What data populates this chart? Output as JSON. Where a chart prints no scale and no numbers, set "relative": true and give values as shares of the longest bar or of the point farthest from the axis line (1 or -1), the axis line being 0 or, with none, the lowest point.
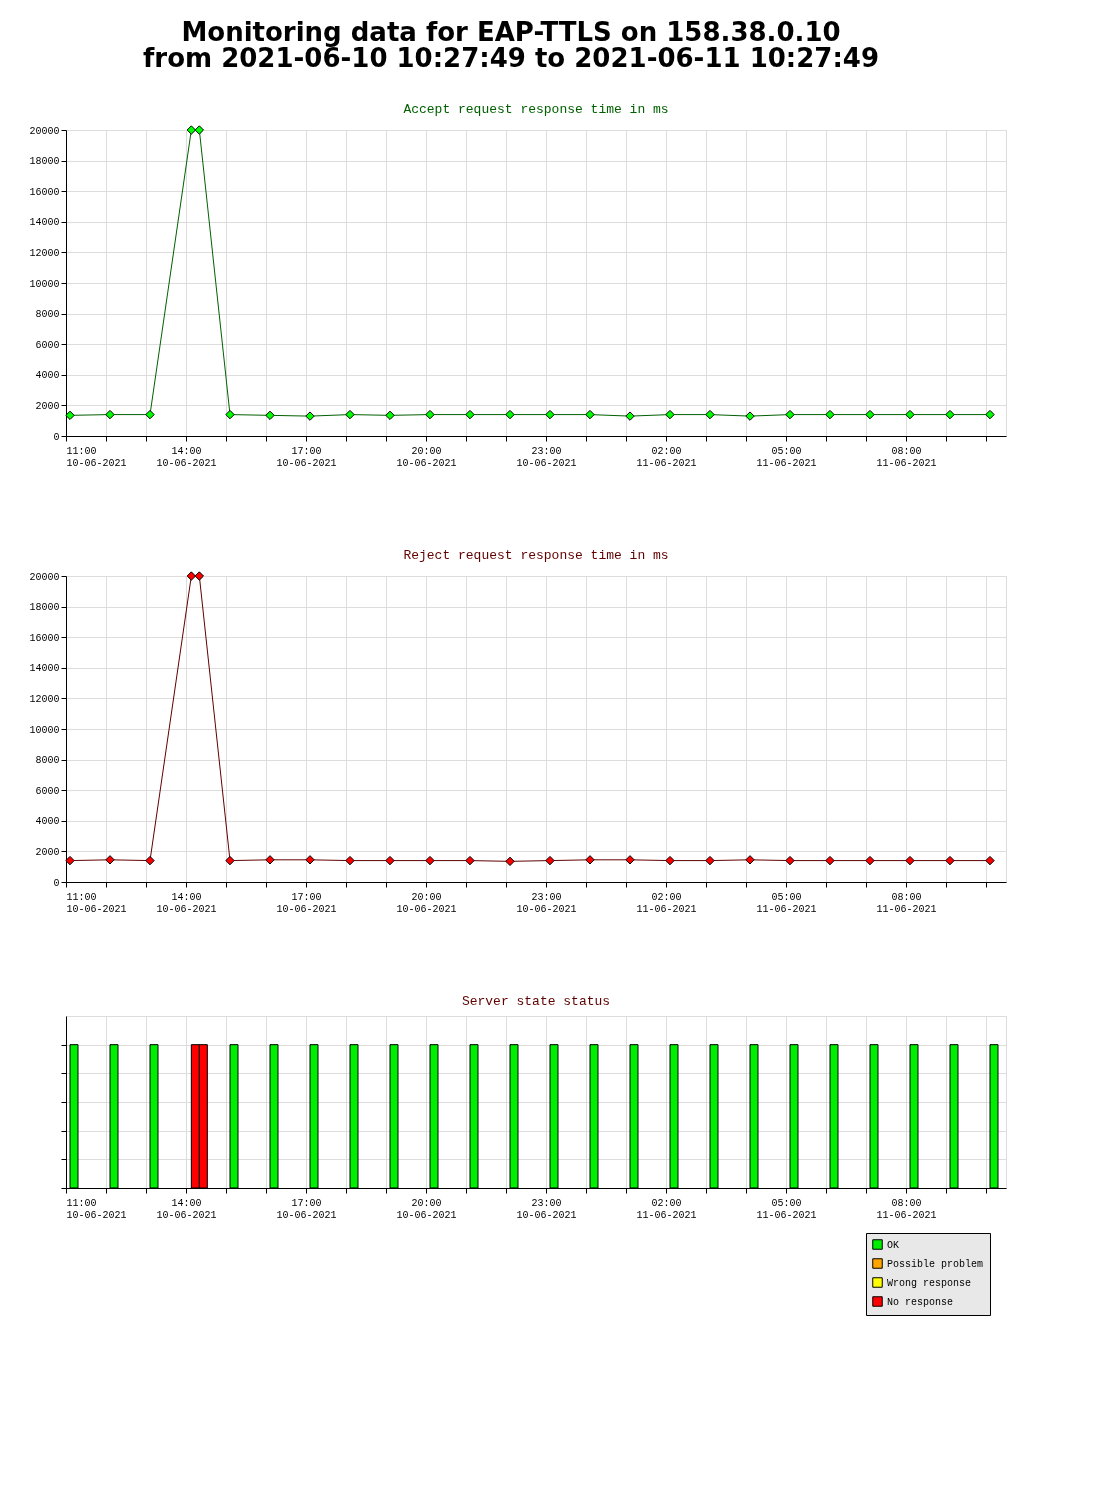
{
  "chart_data": [
    {
      "type": "line",
      "title": "Monitoring data for EAP-TTLS on 158.38.0.10\nfrom 2021-06-10 10:27:49 to 2021-06-11 10:27:49",
      "subtitle": "Accept request response time in ms",
      "x": [
        "2021-06-10T11:06",
        "2021-06-10T12:06",
        "2021-06-10T13:06",
        "2021-06-10T14:08",
        "2021-06-10T14:20",
        "2021-06-10T15:06",
        "2021-06-10T16:06",
        "2021-06-10T17:06",
        "2021-06-10T18:06",
        "2021-06-10T19:06",
        "2021-06-10T20:06",
        "2021-06-10T21:06",
        "2021-06-10T22:06",
        "2021-06-10T23:06",
        "2021-06-11T00:06",
        "2021-06-11T01:06",
        "2021-06-11T02:06",
        "2021-06-11T03:06",
        "2021-06-11T04:06",
        "2021-06-11T05:06",
        "2021-06-11T06:06",
        "2021-06-11T07:06",
        "2021-06-11T08:06",
        "2021-06-11T09:06",
        "2021-06-11T10:06"
      ],
      "series": [
        {
          "color": "#00ff00",
          "values": [
            1350,
            1400,
            1400,
            20000,
            20000,
            1400,
            1350,
            1300,
            1400,
            1350,
            1400,
            1400,
            1400,
            1400,
            1400,
            1300,
            1400,
            1400,
            1300,
            1400,
            1400,
            1400,
            1400,
            1400,
            1400
          ]
        }
      ],
      "xlim": [
        "2021-06-10T11:00",
        "2021-06-11T10:30"
      ],
      "xticks": [
        {
          "value": "2021-06-10T11:00",
          "label": "11:00\n10-06-2021"
        },
        {
          "value": "2021-06-10T12:00",
          "label": null
        },
        {
          "value": "2021-06-10T13:00",
          "label": null
        },
        {
          "value": "2021-06-10T14:00",
          "label": "14:00\n10-06-2021"
        },
        {
          "value": "2021-06-10T15:00",
          "label": null
        },
        {
          "value": "2021-06-10T16:00",
          "label": null
        },
        {
          "value": "2021-06-10T17:00",
          "label": "17:00\n10-06-2021"
        },
        {
          "value": "2021-06-10T18:00",
          "label": null
        },
        {
          "value": "2021-06-10T19:00",
          "label": null
        },
        {
          "value": "2021-06-10T20:00",
          "label": "20:00\n10-06-2021"
        },
        {
          "value": "2021-06-10T21:00",
          "label": null
        },
        {
          "value": "2021-06-10T22:00",
          "label": null
        },
        {
          "value": "2021-06-10T23:00",
          "label": "23:00\n10-06-2021"
        },
        {
          "value": "2021-06-11T00:00",
          "label": null
        },
        {
          "value": "2021-06-11T01:00",
          "label": null
        },
        {
          "value": "2021-06-11T02:00",
          "label": "02:00\n11-06-2021"
        },
        {
          "value": "2021-06-11T03:00",
          "label": null
        },
        {
          "value": "2021-06-11T04:00",
          "label": null
        },
        {
          "value": "2021-06-11T05:00",
          "label": "05:00\n11-06-2021"
        },
        {
          "value": "2021-06-11T06:00",
          "label": null
        },
        {
          "value": "2021-06-11T07:00",
          "label": null
        },
        {
          "value": "2021-06-11T08:00",
          "label": "08:00\n11-06-2021"
        },
        {
          "value": "2021-06-11T09:00",
          "label": null
        },
        {
          "value": "2021-06-11T10:00",
          "label": null
        }
      ],
      "ylim": [
        0,
        20000
      ],
      "yticks": [
        0,
        2000,
        4000,
        6000,
        8000,
        10000,
        12000,
        14000,
        16000,
        18000,
        20000
      ],
      "grid": true,
      "marker": "diamond",
      "line_style": "solid"
    },
    {
      "type": "line",
      "title": "Reject request response time in ms",
      "x": [
        "2021-06-10T11:06",
        "2021-06-10T12:06",
        "2021-06-10T13:06",
        "2021-06-10T14:08",
        "2021-06-10T14:20",
        "2021-06-10T15:06",
        "2021-06-10T16:06",
        "2021-06-10T17:06",
        "2021-06-10T18:06",
        "2021-06-10T19:06",
        "2021-06-10T20:06",
        "2021-06-10T21:06",
        "2021-06-10T22:06",
        "2021-06-10T23:06",
        "2021-06-11T00:06",
        "2021-06-11T01:06",
        "2021-06-11T02:06",
        "2021-06-11T03:06",
        "2021-06-11T04:06",
        "2021-06-11T05:06",
        "2021-06-11T06:06",
        "2021-06-11T07:06",
        "2021-06-11T08:06",
        "2021-06-11T09:06",
        "2021-06-11T10:06"
      ],
      "series": [
        {
          "color": "#ff0000",
          "values": [
            1400,
            1450,
            1400,
            20000,
            20000,
            1400,
            1450,
            1450,
            1400,
            1400,
            1400,
            1400,
            1350,
            1400,
            1450,
            1450,
            1400,
            1400,
            1450,
            1400,
            1400,
            1400,
            1400,
            1400,
            1400
          ]
        }
      ],
      "xlim": [
        "2021-06-10T11:00",
        "2021-06-11T10:30"
      ],
      "xticks": [
        {
          "value": "2021-06-10T11:00",
          "label": "11:00\n10-06-2021"
        },
        {
          "value": "2021-06-10T12:00",
          "label": null
        },
        {
          "value": "2021-06-10T13:00",
          "label": null
        },
        {
          "value": "2021-06-10T14:00",
          "label": "14:00\n10-06-2021"
        },
        {
          "value": "2021-06-10T15:00",
          "label": null
        },
        {
          "value": "2021-06-10T16:00",
          "label": null
        },
        {
          "value": "2021-06-10T17:00",
          "label": "17:00\n10-06-2021"
        },
        {
          "value": "2021-06-10T18:00",
          "label": null
        },
        {
          "value": "2021-06-10T19:00",
          "label": null
        },
        {
          "value": "2021-06-10T20:00",
          "label": "20:00\n10-06-2021"
        },
        {
          "value": "2021-06-10T21:00",
          "label": null
        },
        {
          "value": "2021-06-10T22:00",
          "label": null
        },
        {
          "value": "2021-06-10T23:00",
          "label": "23:00\n10-06-2021"
        },
        {
          "value": "2021-06-11T00:00",
          "label": null
        },
        {
          "value": "2021-06-11T01:00",
          "label": null
        },
        {
          "value": "2021-06-11T02:00",
          "label": "02:00\n11-06-2021"
        },
        {
          "value": "2021-06-11T03:00",
          "label": null
        },
        {
          "value": "2021-06-11T04:00",
          "label": null
        },
        {
          "value": "2021-06-11T05:00",
          "label": "05:00\n11-06-2021"
        },
        {
          "value": "2021-06-11T06:00",
          "label": null
        },
        {
          "value": "2021-06-11T07:00",
          "label": null
        },
        {
          "value": "2021-06-11T08:00",
          "label": "08:00\n11-06-2021"
        },
        {
          "value": "2021-06-11T09:00",
          "label": null
        },
        {
          "value": "2021-06-11T10:00",
          "label": null
        }
      ],
      "ylim": [
        0,
        20000
      ],
      "yticks": [
        0,
        2000,
        4000,
        6000,
        8000,
        10000,
        12000,
        14000,
        16000,
        18000,
        20000
      ],
      "grid": true,
      "marker": "diamond",
      "line_style": "solid"
    },
    {
      "type": "bar",
      "title": "Server state status",
      "relative": true,
      "x": [
        "2021-06-10T11:06",
        "2021-06-10T12:06",
        "2021-06-10T13:06",
        "2021-06-10T14:08",
        "2021-06-10T14:20",
        "2021-06-10T15:06",
        "2021-06-10T16:06",
        "2021-06-10T17:06",
        "2021-06-10T18:06",
        "2021-06-10T19:06",
        "2021-06-10T20:06",
        "2021-06-10T21:06",
        "2021-06-10T22:06",
        "2021-06-10T23:06",
        "2021-06-11T00:06",
        "2021-06-11T01:06",
        "2021-06-11T02:06",
        "2021-06-11T03:06",
        "2021-06-11T04:06",
        "2021-06-11T05:06",
        "2021-06-11T06:06",
        "2021-06-11T07:06",
        "2021-06-11T08:06",
        "2021-06-11T09:06",
        "2021-06-11T10:06"
      ],
      "series": [
        {
          "name": "OK",
          "color": "#00ee00",
          "values": [
            1,
            1,
            1,
            null,
            null,
            1,
            1,
            1,
            1,
            1,
            1,
            1,
            1,
            1,
            1,
            1,
            1,
            1,
            1,
            1,
            1,
            1,
            1,
            1,
            1
          ]
        },
        {
          "name": "Possible problem",
          "color": "#ffa500",
          "values": [
            null,
            null,
            null,
            null,
            null,
            null,
            null,
            null,
            null,
            null,
            null,
            null,
            null,
            null,
            null,
            null,
            null,
            null,
            null,
            null,
            null,
            null,
            null,
            null,
            null
          ]
        },
        {
          "name": "Wrong response",
          "color": "#ffff00",
          "values": [
            null,
            null,
            null,
            null,
            null,
            null,
            null,
            null,
            null,
            null,
            null,
            null,
            null,
            null,
            null,
            null,
            null,
            null,
            null,
            null,
            null,
            null,
            null,
            null,
            null
          ]
        },
        {
          "name": "No response",
          "color": "#ff0000",
          "values": [
            null,
            null,
            null,
            1,
            1,
            null,
            null,
            null,
            null,
            null,
            null,
            null,
            null,
            null,
            null,
            null,
            null,
            null,
            null,
            null,
            null,
            null,
            null,
            null,
            null
          ]
        }
      ],
      "xlim": [
        "2021-06-10T11:00",
        "2021-06-11T10:30"
      ],
      "xticks": [
        {
          "value": "2021-06-10T11:00",
          "label": "11:00\n10-06-2021"
        },
        {
          "value": "2021-06-10T12:00",
          "label": null
        },
        {
          "value": "2021-06-10T13:00",
          "label": null
        },
        {
          "value": "2021-06-10T14:00",
          "label": "14:00\n10-06-2021"
        },
        {
          "value": "2021-06-10T15:00",
          "label": null
        },
        {
          "value": "2021-06-10T16:00",
          "label": null
        },
        {
          "value": "2021-06-10T17:00",
          "label": "17:00\n10-06-2021"
        },
        {
          "value": "2021-06-10T18:00",
          "label": null
        },
        {
          "value": "2021-06-10T19:00",
          "label": null
        },
        {
          "value": "2021-06-10T20:00",
          "label": "20:00\n10-06-2021"
        },
        {
          "value": "2021-06-10T21:00",
          "label": null
        },
        {
          "value": "2021-06-10T22:00",
          "label": null
        },
        {
          "value": "2021-06-10T23:00",
          "label": "23:00\n10-06-2021"
        },
        {
          "value": "2021-06-11T00:00",
          "label": null
        },
        {
          "value": "2021-06-11T01:00",
          "label": null
        },
        {
          "value": "2021-06-11T02:00",
          "label": "02:00\n11-06-2021"
        },
        {
          "value": "2021-06-11T03:00",
          "label": null
        },
        {
          "value": "2021-06-11T04:00",
          "label": null
        },
        {
          "value": "2021-06-11T05:00",
          "label": "05:00\n11-06-2021"
        },
        {
          "value": "2021-06-11T06:00",
          "label": null
        },
        {
          "value": "2021-06-11T07:00",
          "label": null
        },
        {
          "value": "2021-06-11T08:00",
          "label": "08:00\n11-06-2021"
        },
        {
          "value": "2021-06-11T09:00",
          "label": null
        },
        {
          "value": "2021-06-11T10:00",
          "label": null
        }
      ],
      "grid": true,
      "legend": "bottom right"
    }
  ]
}
